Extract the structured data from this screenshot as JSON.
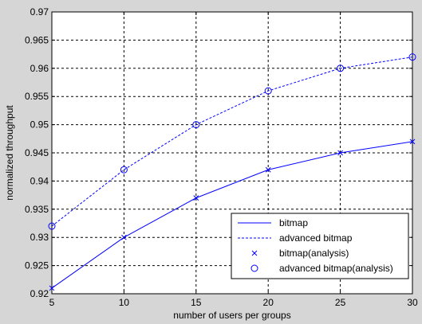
{
  "colors": {
    "figure_bg": "#d6d6d6",
    "axes_bg": "#ffffff",
    "series": "#0000ff",
    "grid": "#000000"
  },
  "chart_data": {
    "type": "line",
    "title": "",
    "xlabel": "number of users per groups",
    "ylabel": "normalized throughput",
    "xlim": [
      5,
      30
    ],
    "ylim": [
      0.92,
      0.97
    ],
    "xticks": [
      5,
      10,
      15,
      20,
      25,
      30
    ],
    "xtick_labels": [
      "5",
      "10",
      "15",
      "20",
      "25",
      "30"
    ],
    "yticks": [
      0.92,
      0.925,
      0.93,
      0.935,
      0.94,
      0.945,
      0.95,
      0.955,
      0.96,
      0.965,
      0.97
    ],
    "ytick_labels": [
      "0.92",
      "0.925",
      "0.93",
      "0.935",
      "0.94",
      "0.945",
      "0.95",
      "0.955",
      "0.96",
      "0.965",
      "0.97"
    ],
    "grid": true,
    "legend_position": "bottom-right",
    "x": [
      5,
      10,
      15,
      20,
      25,
      30
    ],
    "series": [
      {
        "name": "bitmap",
        "style": "solid-line",
        "values": [
          0.921,
          0.93,
          0.937,
          0.942,
          0.945,
          0.947
        ]
      },
      {
        "name": "advanced bitmap",
        "style": "dashed-line",
        "values": [
          0.932,
          0.942,
          0.95,
          0.956,
          0.96,
          0.962
        ]
      },
      {
        "name": "bitmap(analysis)",
        "style": "x-marker",
        "values": [
          0.921,
          0.93,
          0.937,
          0.942,
          0.945,
          0.947
        ]
      },
      {
        "name": "advanced bitmap(analysis)",
        "style": "circle-marker",
        "values": [
          0.932,
          0.942,
          0.95,
          0.956,
          0.96,
          0.962
        ]
      }
    ]
  }
}
